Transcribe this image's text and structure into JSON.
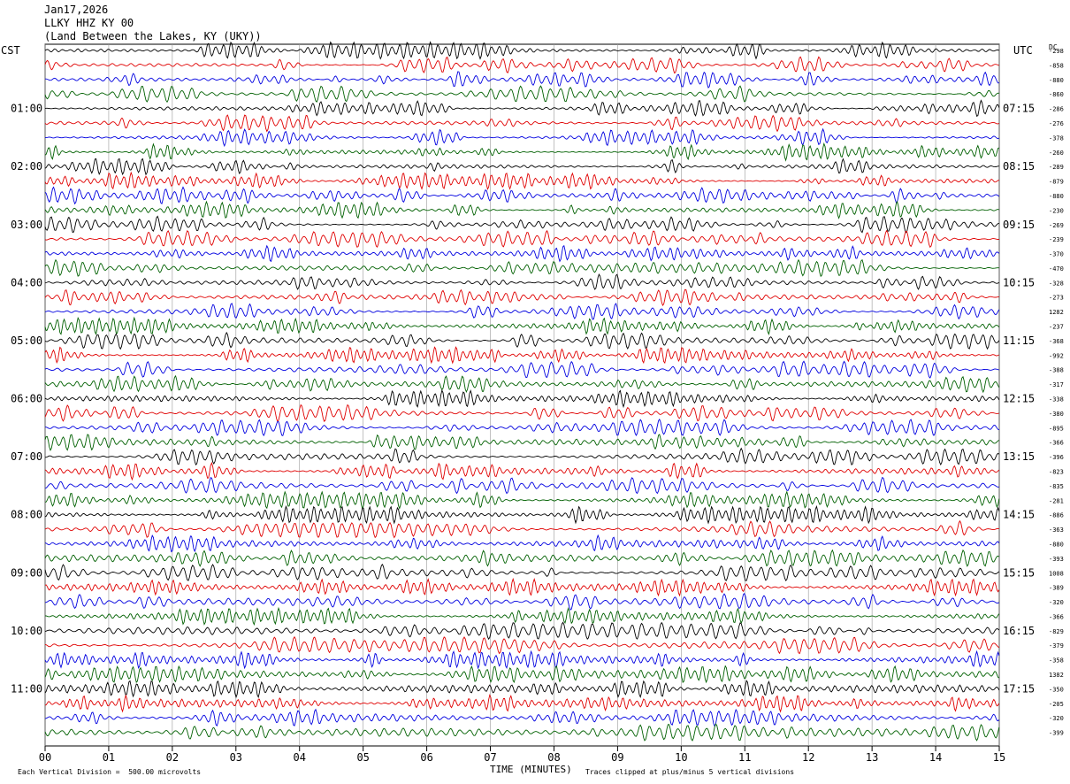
{
  "header": {
    "date": "Jan17,2026",
    "station": "LLKY HHZ KY 00",
    "location": "(Land Between the Lakes, KY (UKY))"
  },
  "left_tz": "CST",
  "right_tz": "UTC",
  "dc_label": "DC",
  "left_times": [
    "01:00",
    "02:00",
    "03:00",
    "04:00",
    "05:00",
    "06:00",
    "07:00",
    "08:00",
    "09:00",
    "10:00",
    "11:00"
  ],
  "right_times": [
    "07:15",
    "08:15",
    "09:15",
    "10:15",
    "11:15",
    "12:15",
    "13:15",
    "14:15",
    "15:15",
    "16:15",
    "17:15"
  ],
  "dc_values": [
    "-298",
    "-858",
    "-880",
    "-860",
    "-286",
    "-276",
    "-378",
    "-260",
    "-289",
    "-879",
    "-880",
    "-230",
    "-269",
    "-239",
    "-370",
    "-470",
    "-328",
    "-273",
    "1282",
    "-237",
    "-368",
    "-992",
    "-388",
    "-317",
    "-338",
    "-380",
    "-895",
    "-366",
    "-396",
    "-823",
    "-835",
    "-281",
    "-886",
    "-363",
    "-880",
    "-393",
    "1008",
    "-389",
    "-320",
    "-366",
    "-829",
    "-379",
    "-358",
    "1382",
    "-350",
    "-205",
    "-320",
    "-399"
  ],
  "x_ticks": [
    "00",
    "01",
    "02",
    "03",
    "04",
    "05",
    "06",
    "07",
    "08",
    "09",
    "10",
    "11",
    "12",
    "13",
    "14",
    "15"
  ],
  "x_title": "TIME (MINUTES)",
  "footer": {
    "scale_note": "Each Vertical Division =  500.00 microvolts",
    "clip_note": "Traces clipped at plus/minus 5 vertical divisions"
  },
  "trace_colors": [
    "#000000",
    "#e00000",
    "#0000e0",
    "#006000"
  ],
  "trace_count": 48
}
